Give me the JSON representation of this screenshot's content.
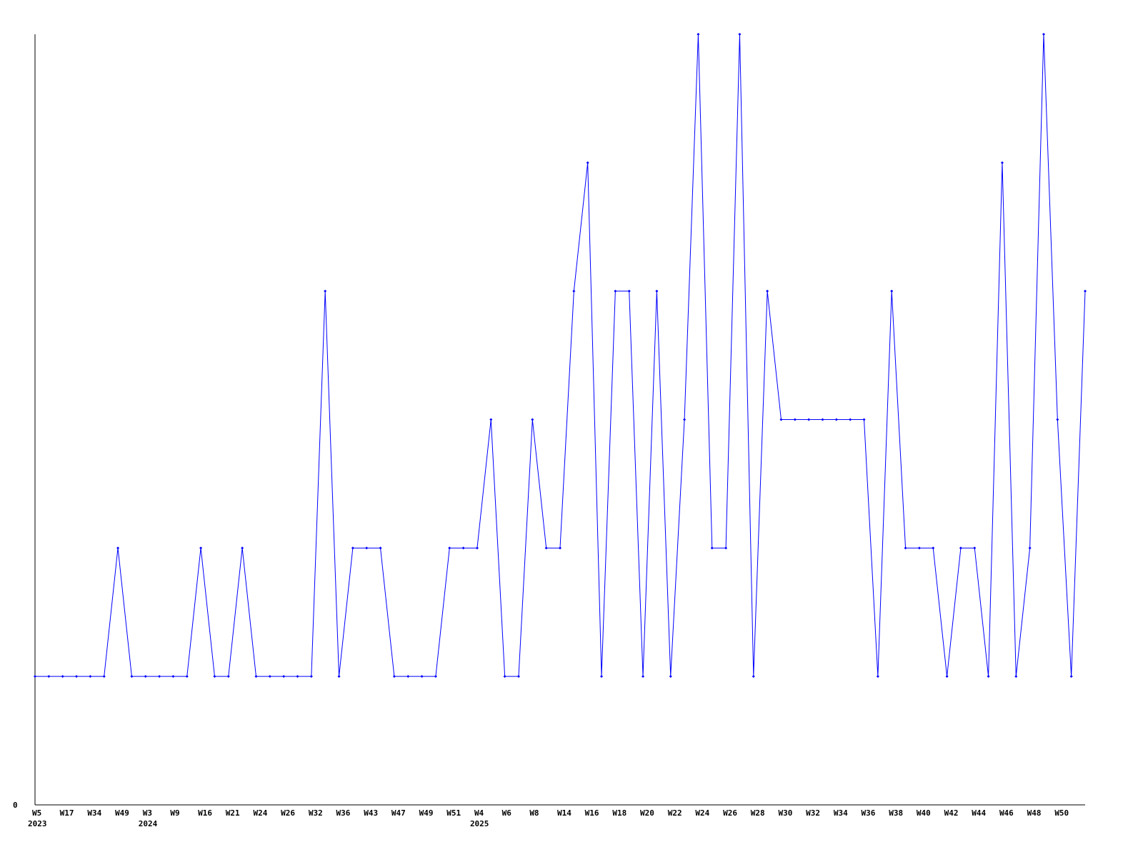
{
  "chart_data": {
    "type": "line",
    "title": "",
    "xlabel": "",
    "ylabel": "",
    "ylim": [
      0,
      6
    ],
    "y_tick_labels": [
      "0"
    ],
    "grid": false,
    "line_color": "#0000ff",
    "categories": [
      "W5",
      "",
      "W17",
      "",
      "W34",
      "",
      "W49",
      "",
      "W3",
      "",
      "W9",
      "",
      "W16",
      "",
      "W21",
      "",
      "W24",
      "",
      "W26",
      "",
      "W32",
      "",
      "W36",
      "",
      "W43",
      "",
      "W47",
      "",
      "W49",
      "",
      "W51",
      "",
      "W4",
      "",
      "W6",
      "",
      "W8",
      "",
      "W14",
      "",
      "W16",
      "",
      "W18",
      "",
      "W20",
      "",
      "W22",
      "",
      "W24",
      "",
      "W26",
      "",
      "W28",
      "",
      "W30",
      "",
      "W32",
      "",
      "W34",
      "",
      "W36",
      "",
      "W38",
      "",
      "W40",
      "",
      "W42",
      "",
      "W44",
      "",
      "W46",
      "",
      "W48",
      "",
      "W50",
      "",
      ""
    ],
    "year_labels": [
      {
        "index": 0,
        "label": "2023"
      },
      {
        "index": 8,
        "label": "2024"
      },
      {
        "index": 32,
        "label": "2025"
      }
    ],
    "values": [
      1,
      1,
      1,
      1,
      1,
      1,
      2,
      1,
      1,
      1,
      1,
      1,
      2,
      1,
      1,
      2,
      1,
      1,
      1,
      1,
      1,
      4,
      1,
      2,
      2,
      2,
      1,
      1,
      1,
      1,
      2,
      2,
      2,
      3,
      1,
      1,
      3,
      2,
      2,
      4,
      5,
      1,
      4,
      4,
      1,
      4,
      1,
      3,
      6,
      2,
      2,
      6,
      1,
      4,
      3,
      3,
      3,
      3,
      3,
      3,
      3,
      1,
      4,
      2,
      2,
      2,
      1,
      2,
      2,
      1,
      5,
      1,
      2,
      6,
      3,
      1,
      4
    ]
  }
}
